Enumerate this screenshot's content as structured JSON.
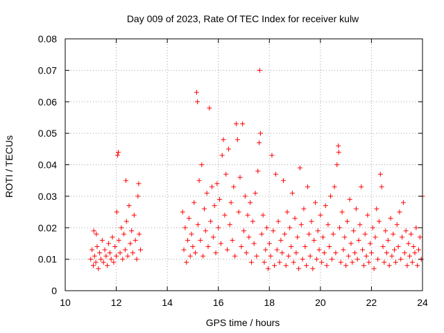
{
  "chart_data": {
    "type": "scatter",
    "title": "Day 009 of 2023, Rate Of TEC Index for receiver kulw",
    "xlabel": "GPS time / hours",
    "ylabel": "ROTI / TECUs",
    "xlim": [
      10,
      24
    ],
    "ylim": [
      0,
      0.08
    ],
    "x_ticks": [
      10,
      12,
      14,
      16,
      18,
      20,
      22,
      24
    ],
    "x_tick_labels": [
      "10",
      "12",
      "14",
      "16",
      "18",
      "20",
      "22",
      "24"
    ],
    "y_ticks": [
      0,
      0.01,
      0.02,
      0.03,
      0.04,
      0.05,
      0.06,
      0.07,
      0.08
    ],
    "y_tick_labels": [
      "0",
      "0.01",
      "0.02",
      "0.03",
      "0.04",
      "0.05",
      "0.06",
      "0.07",
      "0.08"
    ],
    "grid": "dotted",
    "marker": "+",
    "color": "#ff0000",
    "points": [
      [
        11.0,
        0.01
      ],
      [
        11.05,
        0.013
      ],
      [
        11.1,
        0.008
      ],
      [
        11.12,
        0.019
      ],
      [
        11.15,
        0.011
      ],
      [
        11.2,
        0.009
      ],
      [
        11.22,
        0.018
      ],
      [
        11.25,
        0.014
      ],
      [
        11.3,
        0.007
      ],
      [
        11.35,
        0.012
      ],
      [
        11.4,
        0.01
      ],
      [
        11.45,
        0.016
      ],
      [
        11.5,
        0.009
      ],
      [
        11.55,
        0.013
      ],
      [
        11.6,
        0.011
      ],
      [
        11.65,
        0.008
      ],
      [
        11.7,
        0.015
      ],
      [
        11.75,
        0.012
      ],
      [
        11.8,
        0.01
      ],
      [
        11.85,
        0.017
      ],
      [
        11.9,
        0.009
      ],
      [
        11.95,
        0.014
      ],
      [
        12.0,
        0.011
      ],
      [
        12.02,
        0.025
      ],
      [
        12.05,
        0.043
      ],
      [
        12.08,
        0.044
      ],
      [
        12.1,
        0.016
      ],
      [
        12.15,
        0.012
      ],
      [
        12.2,
        0.02
      ],
      [
        12.25,
        0.01
      ],
      [
        12.3,
        0.018
      ],
      [
        12.35,
        0.013
      ],
      [
        12.38,
        0.035
      ],
      [
        12.4,
        0.022
      ],
      [
        12.45,
        0.011
      ],
      [
        12.5,
        0.027
      ],
      [
        12.55,
        0.015
      ],
      [
        12.6,
        0.019
      ],
      [
        12.65,
        0.012
      ],
      [
        12.7,
        0.024
      ],
      [
        12.75,
        0.016
      ],
      [
        12.8,
        0.01
      ],
      [
        12.85,
        0.03
      ],
      [
        12.88,
        0.034
      ],
      [
        12.9,
        0.018
      ],
      [
        12.95,
        0.013
      ],
      [
        14.6,
        0.025
      ],
      [
        14.65,
        0.013
      ],
      [
        14.7,
        0.02
      ],
      [
        14.75,
        0.009
      ],
      [
        14.8,
        0.016
      ],
      [
        14.85,
        0.023
      ],
      [
        14.9,
        0.011
      ],
      [
        14.95,
        0.018
      ],
      [
        15.0,
        0.014
      ],
      [
        15.05,
        0.028
      ],
      [
        15.1,
        0.012
      ],
      [
        15.15,
        0.063
      ],
      [
        15.18,
        0.06
      ],
      [
        15.2,
        0.021
      ],
      [
        15.25,
        0.035
      ],
      [
        15.3,
        0.016
      ],
      [
        15.35,
        0.04
      ],
      [
        15.4,
        0.011
      ],
      [
        15.45,
        0.026
      ],
      [
        15.5,
        0.019
      ],
      [
        15.55,
        0.031
      ],
      [
        15.6,
        0.014
      ],
      [
        15.65,
        0.058
      ],
      [
        15.7,
        0.022
      ],
      [
        15.75,
        0.033
      ],
      [
        15.8,
        0.017
      ],
      [
        15.85,
        0.027
      ],
      [
        15.9,
        0.012
      ],
      [
        15.95,
        0.034
      ],
      [
        16.0,
        0.02
      ],
      [
        16.05,
        0.029
      ],
      [
        16.1,
        0.015
      ],
      [
        16.15,
        0.043
      ],
      [
        16.2,
        0.048
      ],
      [
        16.25,
        0.024
      ],
      [
        16.3,
        0.037
      ],
      [
        16.35,
        0.013
      ],
      [
        16.4,
        0.045
      ],
      [
        16.45,
        0.021
      ],
      [
        16.5,
        0.028
      ],
      [
        16.55,
        0.016
      ],
      [
        16.6,
        0.033
      ],
      [
        16.65,
        0.011
      ],
      [
        16.7,
        0.053
      ],
      [
        16.75,
        0.048
      ],
      [
        16.8,
        0.025
      ],
      [
        16.85,
        0.036
      ],
      [
        16.9,
        0.014
      ],
      [
        16.95,
        0.053
      ],
      [
        17.0,
        0.019
      ],
      [
        17.05,
        0.03
      ],
      [
        17.1,
        0.012
      ],
      [
        17.15,
        0.024
      ],
      [
        17.2,
        0.017
      ],
      [
        17.25,
        0.028
      ],
      [
        17.3,
        0.009
      ],
      [
        17.35,
        0.022
      ],
      [
        17.4,
        0.015
      ],
      [
        17.45,
        0.031
      ],
      [
        17.5,
        0.011
      ],
      [
        17.55,
        0.038
      ],
      [
        17.6,
        0.047
      ],
      [
        17.62,
        0.07
      ],
      [
        17.65,
        0.05
      ],
      [
        17.7,
        0.018
      ],
      [
        17.75,
        0.024
      ],
      [
        17.8,
        0.009
      ],
      [
        17.85,
        0.013
      ],
      [
        17.9,
        0.02
      ],
      [
        17.95,
        0.007
      ],
      [
        18.0,
        0.015
      ],
      [
        18.05,
        0.011
      ],
      [
        18.1,
        0.043
      ],
      [
        18.15,
        0.019
      ],
      [
        18.2,
        0.008
      ],
      [
        18.25,
        0.037
      ],
      [
        18.3,
        0.013
      ],
      [
        18.35,
        0.022
      ],
      [
        18.4,
        0.009
      ],
      [
        18.45,
        0.016
      ],
      [
        18.5,
        0.012
      ],
      [
        18.55,
        0.035
      ],
      [
        18.6,
        0.018
      ],
      [
        18.65,
        0.008
      ],
      [
        18.7,
        0.025
      ],
      [
        18.75,
        0.011
      ],
      [
        18.8,
        0.02
      ],
      [
        18.85,
        0.014
      ],
      [
        18.9,
        0.031
      ],
      [
        18.95,
        0.009
      ],
      [
        19.0,
        0.023
      ],
      [
        19.05,
        0.012
      ],
      [
        19.1,
        0.017
      ],
      [
        19.15,
        0.007
      ],
      [
        19.2,
        0.039
      ],
      [
        19.25,
        0.021
      ],
      [
        19.3,
        0.01
      ],
      [
        19.35,
        0.026
      ],
      [
        19.4,
        0.014
      ],
      [
        19.45,
        0.008
      ],
      [
        19.5,
        0.033
      ],
      [
        19.55,
        0.018
      ],
      [
        19.6,
        0.011
      ],
      [
        19.65,
        0.022
      ],
      [
        19.7,
        0.007
      ],
      [
        19.75,
        0.016
      ],
      [
        19.8,
        0.028
      ],
      [
        19.85,
        0.01
      ],
      [
        19.9,
        0.019
      ],
      [
        19.95,
        0.013
      ],
      [
        20.0,
        0.024
      ],
      [
        20.05,
        0.009
      ],
      [
        20.1,
        0.017
      ],
      [
        20.15,
        0.012
      ],
      [
        20.2,
        0.027
      ],
      [
        20.25,
        0.008
      ],
      [
        20.3,
        0.021
      ],
      [
        20.35,
        0.014
      ],
      [
        20.4,
        0.03
      ],
      [
        20.45,
        0.01
      ],
      [
        20.5,
        0.018
      ],
      [
        20.55,
        0.033
      ],
      [
        20.6,
        0.012
      ],
      [
        20.65,
        0.04
      ],
      [
        20.7,
        0.046
      ],
      [
        20.72,
        0.044
      ],
      [
        20.75,
        0.02
      ],
      [
        20.8,
        0.009
      ],
      [
        20.85,
        0.025
      ],
      [
        20.9,
        0.013
      ],
      [
        20.95,
        0.017
      ],
      [
        21.0,
        0.008
      ],
      [
        21.05,
        0.022
      ],
      [
        21.1,
        0.011
      ],
      [
        21.15,
        0.029
      ],
      [
        21.2,
        0.015
      ],
      [
        21.25,
        0.009
      ],
      [
        21.3,
        0.019
      ],
      [
        21.35,
        0.012
      ],
      [
        21.4,
        0.026
      ],
      [
        21.45,
        0.01
      ],
      [
        21.5,
        0.016
      ],
      [
        21.55,
        0.021
      ],
      [
        21.6,
        0.033
      ],
      [
        21.65,
        0.013
      ],
      [
        21.7,
        0.008
      ],
      [
        21.75,
        0.018
      ],
      [
        21.8,
        0.011
      ],
      [
        21.85,
        0.024
      ],
      [
        21.9,
        0.009
      ],
      [
        21.95,
        0.015
      ],
      [
        22.0,
        0.012
      ],
      [
        22.05,
        0.02
      ],
      [
        22.1,
        0.007
      ],
      [
        22.15,
        0.017
      ],
      [
        22.2,
        0.026
      ],
      [
        22.25,
        0.01
      ],
      [
        22.3,
        0.022
      ],
      [
        22.35,
        0.037
      ],
      [
        22.4,
        0.033
      ],
      [
        22.45,
        0.014
      ],
      [
        22.5,
        0.009
      ],
      [
        22.55,
        0.019
      ],
      [
        22.6,
        0.012
      ],
      [
        22.65,
        0.016
      ],
      [
        22.7,
        0.008
      ],
      [
        22.75,
        0.023
      ],
      [
        22.8,
        0.011
      ],
      [
        22.85,
        0.018
      ],
      [
        22.9,
        0.013
      ],
      [
        22.95,
        0.009
      ],
      [
        23.0,
        0.021
      ],
      [
        23.05,
        0.014
      ],
      [
        23.1,
        0.025
      ],
      [
        23.15,
        0.01
      ],
      [
        23.2,
        0.017
      ],
      [
        23.25,
        0.028
      ],
      [
        23.3,
        0.012
      ],
      [
        23.35,
        0.019
      ],
      [
        23.4,
        0.008
      ],
      [
        23.45,
        0.015
      ],
      [
        23.5,
        0.011
      ],
      [
        23.55,
        0.018
      ],
      [
        23.6,
        0.009
      ],
      [
        23.65,
        0.014
      ],
      [
        23.7,
        0.012
      ],
      [
        23.75,
        0.02
      ],
      [
        23.8,
        0.008
      ],
      [
        23.85,
        0.013
      ],
      [
        23.9,
        0.017
      ],
      [
        23.95,
        0.01
      ],
      [
        24.0,
        0.03
      ]
    ]
  }
}
